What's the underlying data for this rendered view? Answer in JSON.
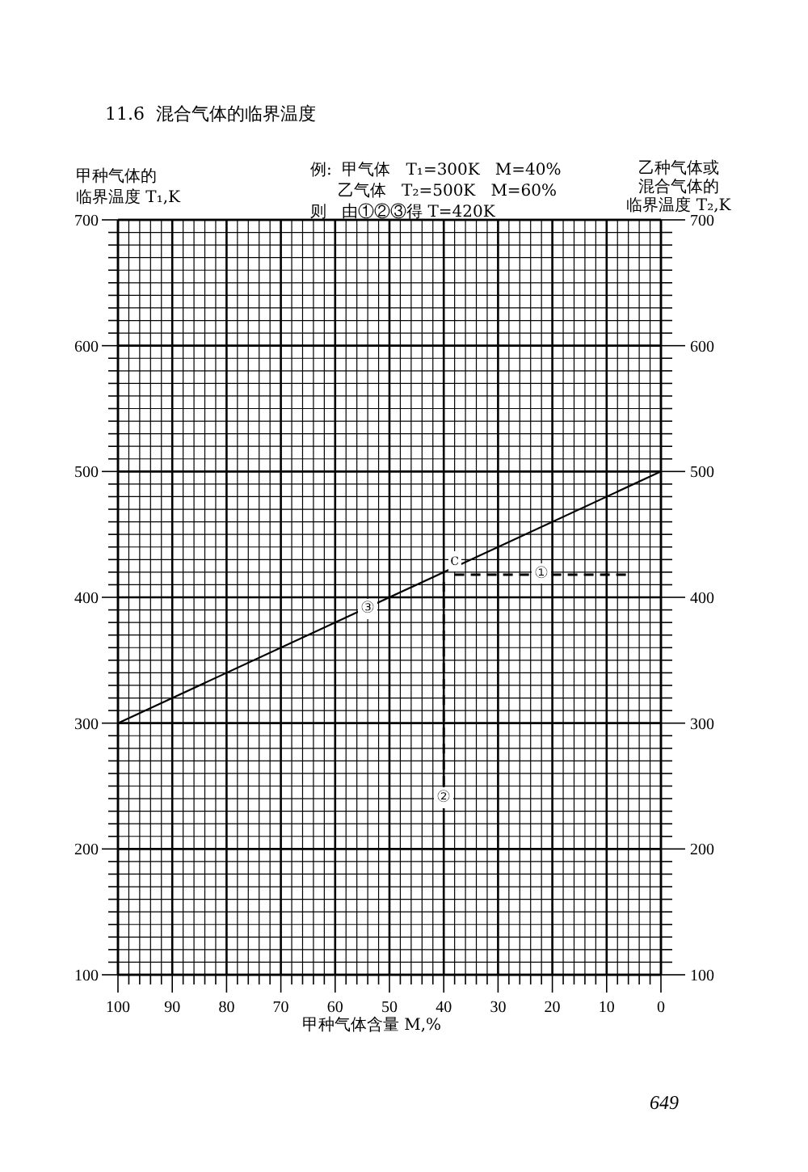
{
  "chart_data": {
    "type": "line",
    "title": "11.6  混合气体的临界温度",
    "xlabel": "甲种气体含量 M,%",
    "ylabel": "甲种气体的临界温度 T₁,K",
    "y2label": "乙种气体或混合气体的临界温度 T₂,K",
    "annotations": [
      "例:  甲气体   T₁=300K   M=40%",
      "乙气体   T₂=500K   M=60%",
      "则   由①②③得 T=420K",
      {
        "text": "①",
        "x": 22,
        "y": 420
      },
      {
        "text": "②",
        "x": 40,
        "y": 242
      },
      {
        "text": "③",
        "x": 54,
        "y": 392
      },
      {
        "text": "c",
        "x": 38,
        "y": 430
      },
      "649"
    ],
    "xlim": [
      100,
      0
    ],
    "xticks": [
      100,
      {
        "value": 98,
        "label": null
      },
      {
        "value": 96,
        "label": null
      },
      {
        "value": 94,
        "label": null
      },
      {
        "value": 92,
        "label": null
      },
      90,
      {
        "value": 88,
        "label": null
      },
      {
        "value": 86,
        "label": null
      },
      {
        "value": 84,
        "label": null
      },
      {
        "value": 82,
        "label": null
      },
      80,
      {
        "value": 78,
        "label": null
      },
      {
        "value": 76,
        "label": null
      },
      {
        "value": 74,
        "label": null
      },
      {
        "value": 72,
        "label": null
      },
      70,
      {
        "value": 68,
        "label": null
      },
      {
        "value": 66,
        "label": null
      },
      {
        "value": 64,
        "label": null
      },
      {
        "value": 62,
        "label": null
      },
      60,
      {
        "value": 58,
        "label": null
      },
      {
        "value": 56,
        "label": null
      },
      {
        "value": 54,
        "label": null
      },
      {
        "value": 52,
        "label": null
      },
      50,
      {
        "value": 48,
        "label": null
      },
      {
        "value": 46,
        "label": null
      },
      {
        "value": 44,
        "label": null
      },
      {
        "value": 42,
        "label": null
      },
      40,
      {
        "value": 38,
        "label": null
      },
      {
        "value": 36,
        "label": null
      },
      {
        "value": 34,
        "label": null
      },
      {
        "value": 32,
        "label": null
      },
      30,
      {
        "value": 28,
        "label": null
      },
      {
        "value": 26,
        "label": null
      },
      {
        "value": 24,
        "label": null
      },
      {
        "value": 22,
        "label": null
      },
      20,
      {
        "value": 18,
        "label": null
      },
      {
        "value": 16,
        "label": null
      },
      {
        "value": 14,
        "label": null
      },
      {
        "value": 12,
        "label": null
      },
      10,
      {
        "value": 8,
        "label": null
      },
      {
        "value": 6,
        "label": null
      },
      {
        "value": 4,
        "label": null
      },
      {
        "value": 2,
        "label": null
      },
      0
    ],
    "ylim": [
      100,
      700
    ],
    "yticks": [
      100,
      {
        "value": 110,
        "label": null
      },
      {
        "value": 120,
        "label": null
      },
      {
        "value": 130,
        "label": null
      },
      {
        "value": 140,
        "label": null
      },
      {
        "value": 150,
        "label": null
      },
      {
        "value": 160,
        "label": null
      },
      {
        "value": 170,
        "label": null
      },
      {
        "value": 180,
        "label": null
      },
      {
        "value": 190,
        "label": null
      },
      200,
      {
        "value": 210,
        "label": null
      },
      {
        "value": 220,
        "label": null
      },
      {
        "value": 230,
        "label": null
      },
      {
        "value": 240,
        "label": null
      },
      {
        "value": 250,
        "label": null
      },
      {
        "value": 260,
        "label": null
      },
      {
        "value": 270,
        "label": null
      },
      {
        "value": 280,
        "label": null
      },
      {
        "value": 290,
        "label": null
      },
      300,
      {
        "value": 310,
        "label": null
      },
      {
        "value": 320,
        "label": null
      },
      {
        "value": 330,
        "label": null
      },
      {
        "value": 340,
        "label": null
      },
      {
        "value": 350,
        "label": null
      },
      {
        "value": 360,
        "label": null
      },
      {
        "value": 370,
        "label": null
      },
      {
        "value": 380,
        "label": null
      },
      {
        "value": 390,
        "label": null
      },
      400,
      {
        "value": 410,
        "label": null
      },
      {
        "value": 420,
        "label": null
      },
      {
        "value": 430,
        "label": null
      },
      {
        "value": 440,
        "label": null
      },
      {
        "value": 450,
        "label": null
      },
      {
        "value": 460,
        "label": null
      },
      {
        "value": 470,
        "label": null
      },
      {
        "value": 480,
        "label": null
      },
      {
        "value": 490,
        "label": null
      },
      500,
      {
        "value": 510,
        "label": null
      },
      {
        "value": 520,
        "label": null
      },
      {
        "value": 530,
        "label": null
      },
      {
        "value": 540,
        "label": null
      },
      {
        "value": 550,
        "label": null
      },
      {
        "value": 560,
        "label": null
      },
      {
        "value": 570,
        "label": null
      },
      {
        "value": 580,
        "label": null
      },
      {
        "value": 590,
        "label": null
      },
      600,
      {
        "value": 610,
        "label": null
      },
      {
        "value": 620,
        "label": null
      },
      {
        "value": 630,
        "label": null
      },
      {
        "value": 640,
        "label": null
      },
      {
        "value": 650,
        "label": null
      },
      {
        "value": 660,
        "label": null
      },
      {
        "value": 670,
        "label": null
      },
      {
        "value": 680,
        "label": null
      },
      {
        "value": 690,
        "label": null
      },
      700
    ],
    "y2lim": [
      100,
      700
    ],
    "y2ticks": [
      100,
      {
        "value": 110,
        "label": null
      },
      {
        "value": 120,
        "label": null
      },
      {
        "value": 130,
        "label": null
      },
      {
        "value": 140,
        "label": null
      },
      {
        "value": 150,
        "label": null
      },
      {
        "value": 160,
        "label": null
      },
      {
        "value": 170,
        "label": null
      },
      {
        "value": 180,
        "label": null
      },
      {
        "value": 190,
        "label": null
      },
      200,
      {
        "value": 210,
        "label": null
      },
      {
        "value": 220,
        "label": null
      },
      {
        "value": 230,
        "label": null
      },
      {
        "value": 240,
        "label": null
      },
      {
        "value": 250,
        "label": null
      },
      {
        "value": 260,
        "label": null
      },
      {
        "value": 270,
        "label": null
      },
      {
        "value": 280,
        "label": null
      },
      {
        "value": 290,
        "label": null
      },
      300,
      {
        "value": 310,
        "label": null
      },
      {
        "value": 320,
        "label": null
      },
      {
        "value": 330,
        "label": null
      },
      {
        "value": 340,
        "label": null
      },
      {
        "value": 350,
        "label": null
      },
      {
        "value": 360,
        "label": null
      },
      {
        "value": 370,
        "label": null
      },
      {
        "value": 380,
        "label": null
      },
      {
        "value": 390,
        "label": null
      },
      400,
      {
        "value": 410,
        "label": null
      },
      {
        "value": 420,
        "label": null
      },
      {
        "value": 430,
        "label": null
      },
      {
        "value": 440,
        "label": null
      },
      {
        "value": 450,
        "label": null
      },
      {
        "value": 460,
        "label": null
      },
      {
        "value": 470,
        "label": null
      },
      {
        "value": 480,
        "label": null
      },
      {
        "value": 490,
        "label": null
      },
      500,
      {
        "value": 510,
        "label": null
      },
      {
        "value": 520,
        "label": null
      },
      {
        "value": 530,
        "label": null
      },
      {
        "value": 540,
        "label": null
      },
      {
        "value": 550,
        "label": null
      },
      {
        "value": 560,
        "label": null
      },
      {
        "value": 570,
        "label": null
      },
      {
        "value": 580,
        "label": null
      },
      {
        "value": 590,
        "label": null
      },
      600,
      {
        "value": 610,
        "label": null
      },
      {
        "value": 620,
        "label": null
      },
      {
        "value": 630,
        "label": null
      },
      {
        "value": 640,
        "label": null
      },
      {
        "value": 650,
        "label": null
      },
      {
        "value": 660,
        "label": null
      },
      {
        "value": 670,
        "label": null
      },
      {
        "value": 680,
        "label": null
      },
      {
        "value": 690,
        "label": null
      },
      700
    ],
    "grid": true,
    "series": [
      {
        "color": "#000000",
        "x": [
          100,
          0
        ],
        "values": [
          300,
          500
        ],
        "line_style": "solid"
      },
      {
        "color": "#000000",
        "x": [
          38,
          6
        ],
        "values": [
          418,
          418
        ],
        "line_style": "dashed"
      },
      {
        "color": "#000000",
        "x": [
          40,
          40
        ],
        "values": [
          412,
          242
        ],
        "line_style": "dashed"
      }
    ]
  }
}
